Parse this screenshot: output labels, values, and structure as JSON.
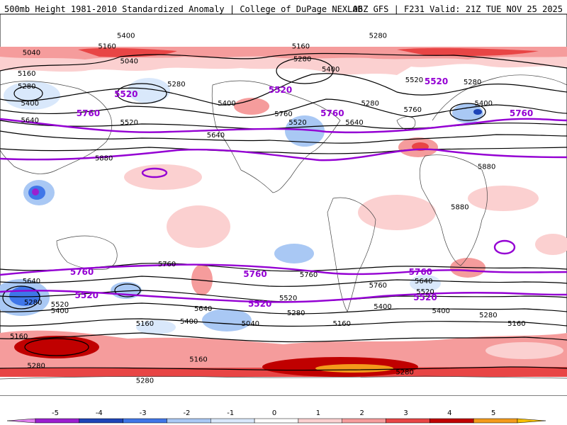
{
  "header": {
    "left": "500mb Height 1981-2010 Standardized Anomaly | College of DuPage NEXLAB",
    "right": "06Z GFS | F231 Valid: 21Z TUE NOV 25 2025"
  },
  "colors": {
    "ocean_bg": "#ffffff",
    "contour": "#000000",
    "ref_contour": "#9400d3",
    "coast": "#333333"
  },
  "colorbar": {
    "ticks": [
      "-5",
      "-4",
      "-3",
      "-2",
      "-1",
      "0",
      "1",
      "2",
      "3",
      "4",
      "5"
    ],
    "bins": [
      {
        "lo": -5,
        "hi": -4,
        "color": "#9b1fd0"
      },
      {
        "lo": -4,
        "hi": -3,
        "color": "#1d44b8"
      },
      {
        "lo": -3,
        "hi": -2,
        "color": "#3f76e8"
      },
      {
        "lo": -2,
        "hi": -1,
        "color": "#a9c8f4"
      },
      {
        "lo": -1,
        "hi": 0,
        "color": "#d9e8fb"
      },
      {
        "lo": 0,
        "hi": 1,
        "color": "#ffffff"
      },
      {
        "lo": 1,
        "hi": 2,
        "color": "#fbd0d0"
      },
      {
        "lo": 2,
        "hi": 3,
        "color": "#f59c9c"
      },
      {
        "lo": 3,
        "hi": 4,
        "color": "#e84545"
      },
      {
        "lo": 4,
        "hi": 5,
        "color": "#c00000"
      },
      {
        "lo": 5,
        "hi": 6,
        "color": "#f39a1b"
      }
    ],
    "below_color": "#e080f0",
    "above_color": "#f7c000"
  },
  "contour_labels": [
    {
      "text": "5400",
      "lon": -100,
      "lat": 80
    },
    {
      "text": "5280",
      "lon": 60,
      "lat": 80
    },
    {
      "text": "5040",
      "lon": -160,
      "lat": 72
    },
    {
      "text": "5160",
      "lon": -112,
      "lat": 75
    },
    {
      "text": "5040",
      "lon": -98,
      "lat": 68
    },
    {
      "text": "5160",
      "lon": 11,
      "lat": 75
    },
    {
      "text": "5280",
      "lon": 12,
      "lat": 69
    },
    {
      "text": "5400",
      "lon": 30,
      "lat": 64
    },
    {
      "text": "5160",
      "lon": -163,
      "lat": 62
    },
    {
      "text": "5280",
      "lon": -163,
      "lat": 56
    },
    {
      "text": "5280",
      "lon": -68,
      "lat": 57
    },
    {
      "text": "5400",
      "lon": -161,
      "lat": 48
    },
    {
      "text": "5520",
      "lon": 83,
      "lat": 59
    },
    {
      "text": "5400",
      "lon": -36,
      "lat": 48
    },
    {
      "text": "5400",
      "lon": 127,
      "lat": 48
    },
    {
      "text": "5280",
      "lon": 55,
      "lat": 48
    },
    {
      "text": "5280",
      "lon": 120,
      "lat": 58
    },
    {
      "text": "5640",
      "lon": -161,
      "lat": 40
    },
    {
      "text": "5520",
      "lon": -98,
      "lat": 39
    },
    {
      "text": "5760",
      "lon": 0,
      "lat": 43
    },
    {
      "text": "5520",
      "lon": 9,
      "lat": 39
    },
    {
      "text": "5640",
      "lon": 45,
      "lat": 39
    },
    {
      "text": "5760",
      "lon": 82,
      "lat": 45
    },
    {
      "text": "5640",
      "lon": -43,
      "lat": 33
    },
    {
      "text": "5880",
      "lon": -114,
      "lat": 22
    },
    {
      "text": "5880",
      "lon": 129,
      "lat": 18
    },
    {
      "text": "5880",
      "lon": 112,
      "lat": -1
    },
    {
      "text": "5760",
      "lon": -74,
      "lat": -28
    },
    {
      "text": "5760",
      "lon": 16,
      "lat": -33
    },
    {
      "text": "5760",
      "lon": 60,
      "lat": -38
    },
    {
      "text": "5640",
      "lon": 89,
      "lat": -36
    },
    {
      "text": "5520",
      "lon": 90,
      "lat": -41
    },
    {
      "text": "5640",
      "lon": -160,
      "lat": -36
    },
    {
      "text": "5280",
      "lon": -159,
      "lat": -46
    },
    {
      "text": "5520",
      "lon": -142,
      "lat": -47
    },
    {
      "text": "5400",
      "lon": -142,
      "lat": -50
    },
    {
      "text": "5640",
      "lon": -51,
      "lat": -49
    },
    {
      "text": "5520",
      "lon": 3,
      "lat": -44
    },
    {
      "text": "5400",
      "lon": 100,
      "lat": -50
    },
    {
      "text": "5280",
      "lon": 8,
      "lat": -51
    },
    {
      "text": "5400",
      "lon": 63,
      "lat": -48
    },
    {
      "text": "5280",
      "lon": 130,
      "lat": -52
    },
    {
      "text": "5160",
      "lon": -88,
      "lat": -56
    },
    {
      "text": "5400",
      "lon": -60,
      "lat": -55
    },
    {
      "text": "5040",
      "lon": -21,
      "lat": -56
    },
    {
      "text": "5160",
      "lon": 37,
      "lat": -56
    },
    {
      "text": "5160",
      "lon": 148,
      "lat": -56
    },
    {
      "text": "5160",
      "lon": -168,
      "lat": -62
    },
    {
      "text": "5280",
      "lon": -157,
      "lat": -76
    },
    {
      "text": "5160",
      "lon": -54,
      "lat": -73
    },
    {
      "text": "5280",
      "lon": -88,
      "lat": -83
    },
    {
      "text": "5280",
      "lon": 77,
      "lat": -79
    }
  ],
  "ref_labels": [
    {
      "text": "5520",
      "lon": -100,
      "lat": 52
    },
    {
      "text": "5520",
      "lon": -2,
      "lat": 54
    },
    {
      "text": "5520",
      "lon": 97,
      "lat": 58
    },
    {
      "text": "5760",
      "lon": -124,
      "lat": 43
    },
    {
      "text": "5760",
      "lon": 31,
      "lat": 43
    },
    {
      "text": "5760",
      "lon": 151,
      "lat": 43
    },
    {
      "text": "5760",
      "lon": -128,
      "lat": -32
    },
    {
      "text": "5760",
      "lon": -18,
      "lat": -33
    },
    {
      "text": "5760",
      "lon": 87,
      "lat": -32
    },
    {
      "text": "5520",
      "lon": -125,
      "lat": -43
    },
    {
      "text": "5520",
      "lon": -15,
      "lat": -47
    },
    {
      "text": "5520",
      "lon": 90,
      "lat": -44
    }
  ]
}
